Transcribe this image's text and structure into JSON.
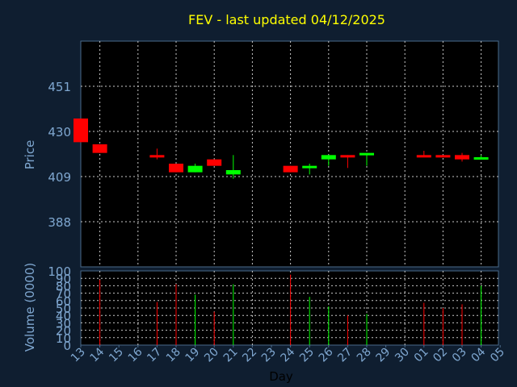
{
  "chart_data": {
    "type": "candlestick",
    "title": "FEV - last updated 04/12/2025",
    "xlabel": "Day",
    "price_panel": {
      "ylabel": "Price",
      "y_ticks": [
        388,
        409,
        430,
        451
      ],
      "ylim": [
        367,
        472
      ]
    },
    "volume_panel": {
      "ylabel": "Volume (0000)",
      "y_ticks": [
        0,
        10,
        20,
        30,
        40,
        50,
        60,
        70,
        80,
        90,
        100
      ],
      "ylim": [
        0,
        100
      ]
    },
    "x_ticks": [
      "13",
      "14",
      "15",
      "16",
      "17",
      "18",
      "19",
      "20",
      "21",
      "22",
      "23",
      "24",
      "25",
      "26",
      "27",
      "28",
      "29",
      "30",
      "01",
      "02",
      "03",
      "04",
      "05"
    ],
    "colors": {
      "up": "#00ff00",
      "down": "#ff0000",
      "title": "#ffff00",
      "axis_text": "#7fa7d0"
    },
    "candles": [
      {
        "day": "13",
        "open": 436,
        "high": 436,
        "low": 425,
        "close": 425,
        "volume": 0
      },
      {
        "day": "14",
        "open": 424,
        "high": 424,
        "low": 420,
        "close": 420,
        "volume": 88
      },
      {
        "day": "17",
        "open": 419,
        "high": 422,
        "low": 417,
        "close": 418,
        "volume": 58
      },
      {
        "day": "18",
        "open": 415,
        "high": 415,
        "low": 411,
        "close": 411,
        "volume": 82
      },
      {
        "day": "19",
        "open": 411,
        "high": 415,
        "low": 411,
        "close": 414,
        "volume": 68
      },
      {
        "day": "20",
        "open": 417,
        "high": 417,
        "low": 414,
        "close": 414,
        "volume": 45
      },
      {
        "day": "21",
        "open": 410,
        "high": 419,
        "low": 408,
        "close": 412,
        "volume": 82
      },
      {
        "day": "24",
        "open": 414,
        "high": 414,
        "low": 411,
        "close": 411,
        "volume": 95
      },
      {
        "day": "25",
        "open": 413,
        "high": 415,
        "low": 410,
        "close": 414,
        "volume": 65
      },
      {
        "day": "26",
        "open": 417,
        "high": 419,
        "low": 414,
        "close": 419,
        "volume": 52
      },
      {
        "day": "27",
        "open": 419,
        "high": 419,
        "low": 413,
        "close": 418,
        "volume": 40
      },
      {
        "day": "28",
        "open": 419,
        "high": 420,
        "low": 414,
        "close": 420,
        "volume": 42
      },
      {
        "day": "01",
        "open": 419,
        "high": 421,
        "low": 418,
        "close": 418,
        "volume": 57
      },
      {
        "day": "02",
        "open": 419,
        "high": 419,
        "low": 418,
        "close": 418,
        "volume": 50
      },
      {
        "day": "03",
        "open": 419,
        "high": 420,
        "low": 416,
        "close": 417,
        "volume": 55
      },
      {
        "day": "04",
        "open": 417,
        "high": 419,
        "low": 417,
        "close": 418,
        "volume": 80
      }
    ]
  }
}
